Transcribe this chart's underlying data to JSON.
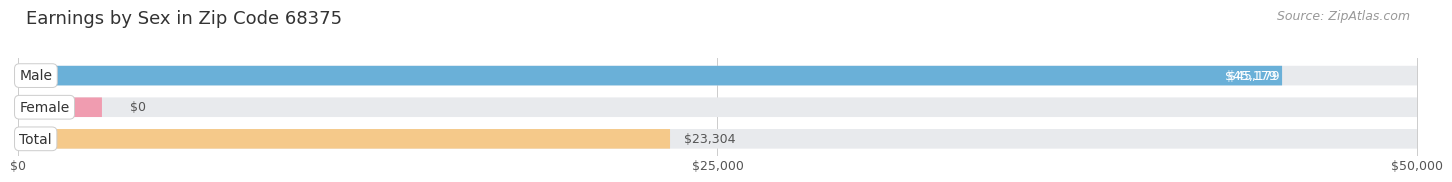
{
  "title": "Earnings by Sex in Zip Code 68375",
  "source": "Source: ZipAtlas.com",
  "categories": [
    "Male",
    "Female",
    "Total"
  ],
  "values": [
    45179,
    0,
    23304
  ],
  "bar_colors": [
    "#6ab0d8",
    "#f09cb0",
    "#f5c98a"
  ],
  "background_color": "#ffffff",
  "bar_bg_color": "#e8eaed",
  "xmax": 50000,
  "xtick_labels": [
    "$0",
    "$25,000",
    "$50,000"
  ],
  "value_labels": [
    "$45,179",
    "$0",
    "$23,304"
  ],
  "title_fontsize": 13,
  "source_fontsize": 9,
  "tick_fontsize": 9,
  "label_fontsize": 10,
  "value_fontsize": 9
}
